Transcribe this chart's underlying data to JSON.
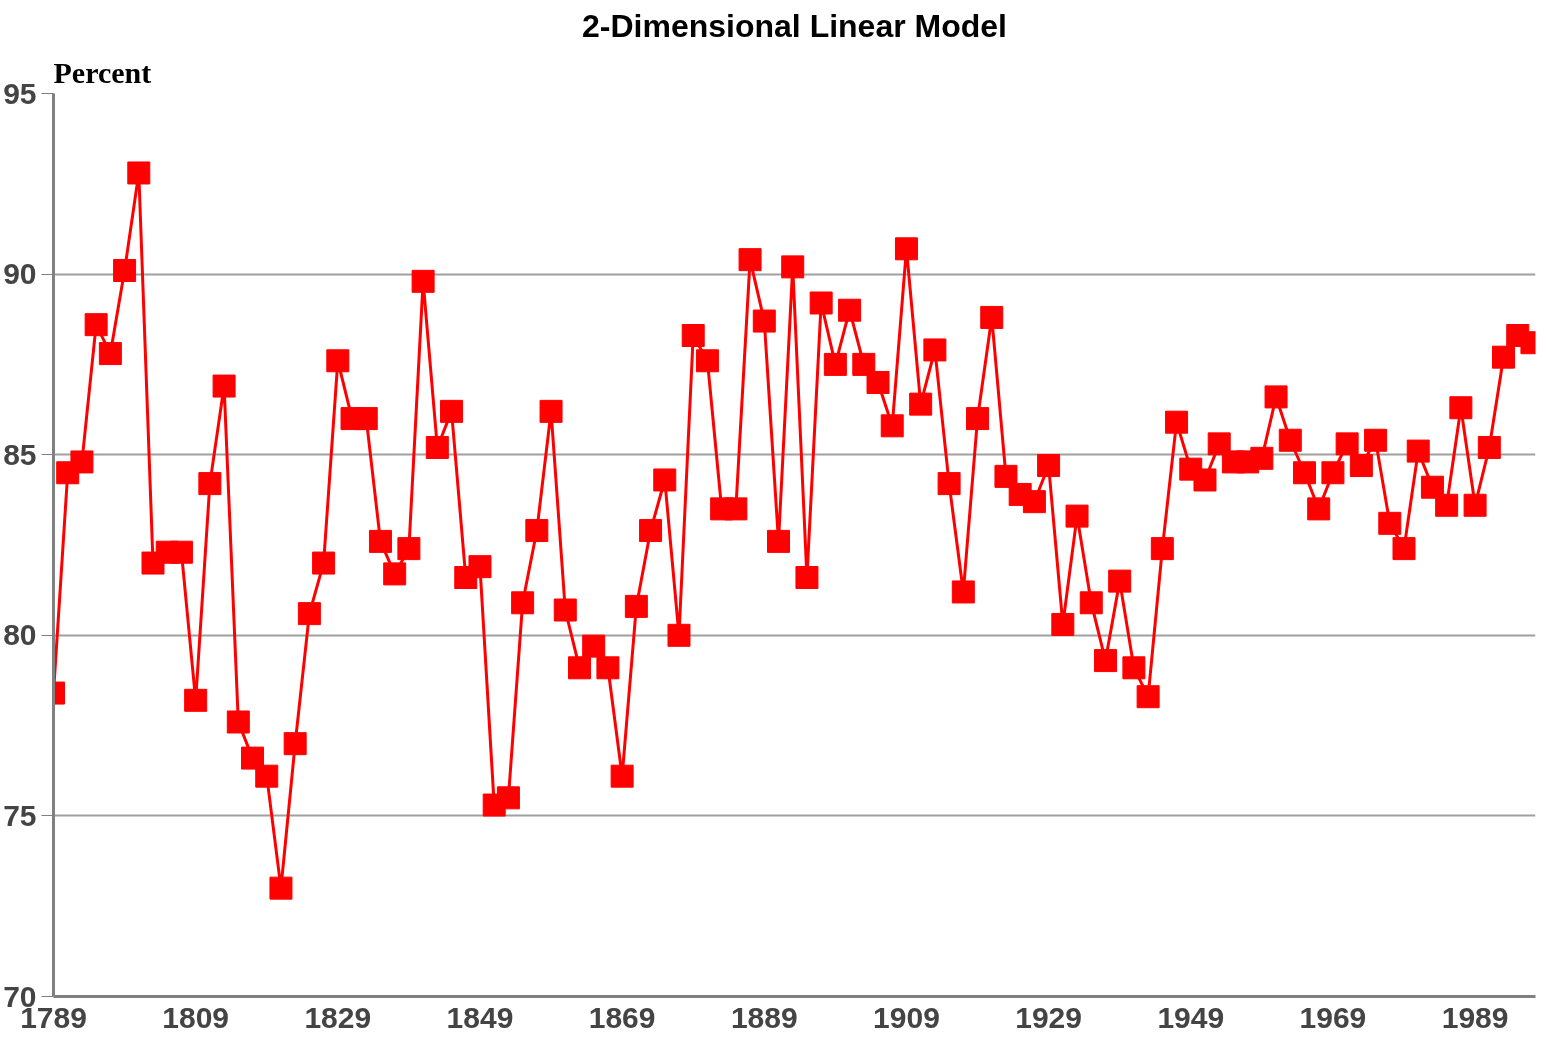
{
  "chart_data": {
    "type": "line",
    "title": "2-Dimensional Linear Model",
    "ylabel": "Percent",
    "x": [
      1789,
      1791,
      1793,
      1795,
      1797,
      1799,
      1801,
      1803,
      1805,
      1807,
      1809,
      1811,
      1813,
      1815,
      1817,
      1819,
      1821,
      1823,
      1825,
      1827,
      1829,
      1831,
      1833,
      1835,
      1837,
      1839,
      1841,
      1843,
      1845,
      1847,
      1849,
      1851,
      1853,
      1855,
      1857,
      1859,
      1861,
      1863,
      1865,
      1867,
      1869,
      1871,
      1873,
      1875,
      1877,
      1879,
      1881,
      1883,
      1885,
      1887,
      1889,
      1891,
      1893,
      1895,
      1897,
      1899,
      1901,
      1903,
      1905,
      1907,
      1909,
      1911,
      1913,
      1915,
      1917,
      1919,
      1921,
      1923,
      1925,
      1927,
      1929,
      1931,
      1933,
      1935,
      1937,
      1939,
      1941,
      1943,
      1945,
      1947,
      1949,
      1951,
      1953,
      1955,
      1957,
      1959,
      1961,
      1963,
      1965,
      1967,
      1969,
      1971,
      1973,
      1975,
      1977,
      1979,
      1981,
      1983,
      1985,
      1987,
      1989,
      1991,
      1993,
      1995,
      1997
    ],
    "series": [
      {
        "color": "#ff0000",
        "values": [
          78.4,
          84.5,
          84.8,
          88.6,
          87.8,
          90.1,
          92.8,
          82.0,
          82.3,
          82.3,
          78.2,
          84.2,
          86.9,
          77.6,
          76.6,
          76.1,
          73.0,
          77.0,
          80.6,
          82.0,
          87.6,
          86.0,
          86.0,
          82.6,
          81.7,
          82.4,
          89.8,
          85.2,
          86.2,
          81.6,
          81.9,
          75.3,
          75.5,
          80.9,
          82.9,
          86.2,
          80.7,
          79.1,
          79.7,
          79.1,
          76.1,
          80.8,
          82.9,
          84.3,
          80.0,
          88.3,
          87.6,
          83.5,
          83.5,
          90.4,
          88.7,
          82.6,
          90.2,
          81.6,
          89.2,
          87.5,
          89.0,
          87.5,
          87.0,
          85.8,
          90.7,
          86.4,
          87.9,
          84.2,
          81.2,
          86.0,
          88.8,
          84.4,
          83.9,
          83.7,
          84.7,
          80.3,
          83.3,
          80.9,
          79.3,
          81.5,
          79.1,
          78.3,
          82.4,
          85.9,
          84.6,
          84.3,
          85.3,
          84.8,
          84.8,
          84.9,
          86.6,
          85.4,
          84.5,
          83.5,
          84.5,
          85.3,
          84.7,
          85.4,
          83.1,
          82.4,
          85.1,
          84.1,
          83.6,
          86.3,
          83.6,
          85.2,
          87.7,
          88.3,
          88.1
        ]
      }
    ],
    "xlim": [
      1789,
      1997.5
    ],
    "xticks": [
      1789,
      1809,
      1829,
      1849,
      1869,
      1889,
      1909,
      1929,
      1949,
      1969,
      1989
    ],
    "ylim": [
      70,
      95
    ],
    "yticks": [
      70,
      75,
      80,
      85,
      90,
      95
    ],
    "grid": "y",
    "marker": "square",
    "line_style": "solid"
  }
}
